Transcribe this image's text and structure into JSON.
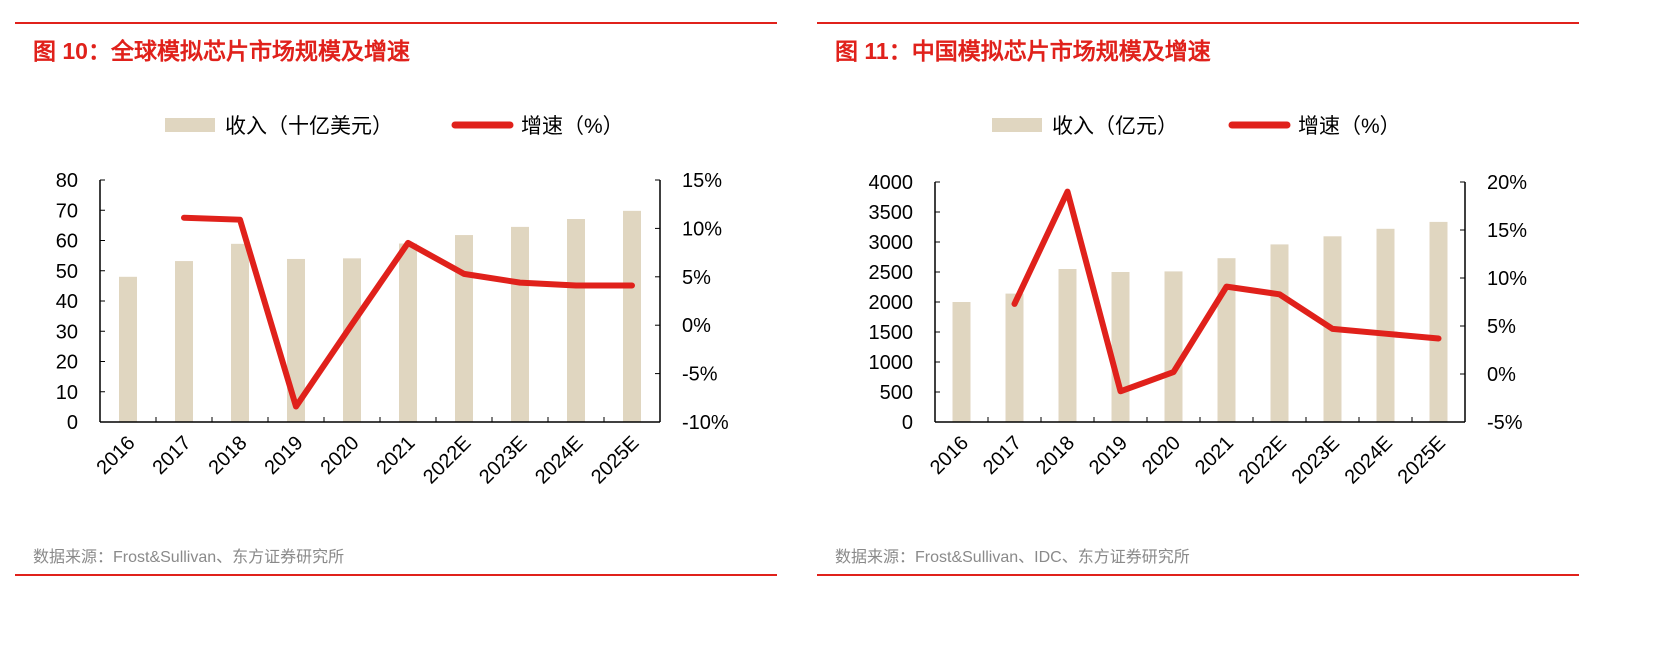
{
  "colors": {
    "bar": "#e0d6c0",
    "line": "#e0211b",
    "accent": "#e0211b"
  },
  "chart_data": [
    {
      "type": "bar+line",
      "title": "图 10：全球模拟芯片市场规模及增速",
      "source": "数据来源：Frost&Sullivan、东方证券研究所",
      "categories": [
        "2016",
        "2017",
        "2018",
        "2019",
        "2020",
        "2021",
        "2022E",
        "2023E",
        "2024E",
        "2025E"
      ],
      "series": [
        {
          "name": "收入（十亿美元）",
          "type": "bar",
          "axis": "left",
          "values": [
            48,
            53.2,
            58.9,
            53.9,
            54.1,
            59,
            61.8,
            64.5,
            67.1,
            69.8
          ]
        },
        {
          "name": "增速（%）",
          "type": "line",
          "axis": "right",
          "values": [
            null,
            11.1,
            10.9,
            -8.4,
            0.1,
            8.5,
            5.3,
            4.4,
            4.1,
            4.1
          ]
        }
      ],
      "ylim": [
        0,
        80
      ],
      "yticks": [
        "0",
        "10",
        "20",
        "30",
        "40",
        "50",
        "60",
        "70",
        "80"
      ],
      "y2lim": [
        -10,
        15
      ],
      "y2ticks": [
        "-10%",
        "-5%",
        "0%",
        "5%",
        "10%",
        "15%"
      ],
      "legend": "top"
    },
    {
      "type": "bar+line",
      "title": "图 11：中国模拟芯片市场规模及增速",
      "source": "数据来源：Frost&Sullivan、IDC、东方证券研究所",
      "categories": [
        "2016",
        "2017",
        "2018",
        "2019",
        "2020",
        "2021",
        "2022E",
        "2023E",
        "2024E",
        "2025E"
      ],
      "series": [
        {
          "name": "收入（亿元）",
          "type": "bar",
          "axis": "left",
          "values": [
            2000,
            2140,
            2550,
            2500,
            2510,
            2730,
            2960,
            3095,
            3220,
            3335
          ]
        },
        {
          "name": "增速（%）",
          "type": "line",
          "axis": "right",
          "values": [
            null,
            7.3,
            19.0,
            -1.8,
            0.2,
            9.1,
            8.3,
            4.7,
            4.2,
            3.7
          ]
        }
      ],
      "ylim": [
        0,
        4000
      ],
      "yticks": [
        "0",
        "500",
        "1000",
        "1500",
        "2000",
        "2500",
        "3000",
        "3500",
        "4000"
      ],
      "y2lim": [
        -5,
        20
      ],
      "y2ticks": [
        "-5%",
        "0%",
        "5%",
        "10%",
        "15%",
        "20%"
      ],
      "legend": "top"
    }
  ]
}
